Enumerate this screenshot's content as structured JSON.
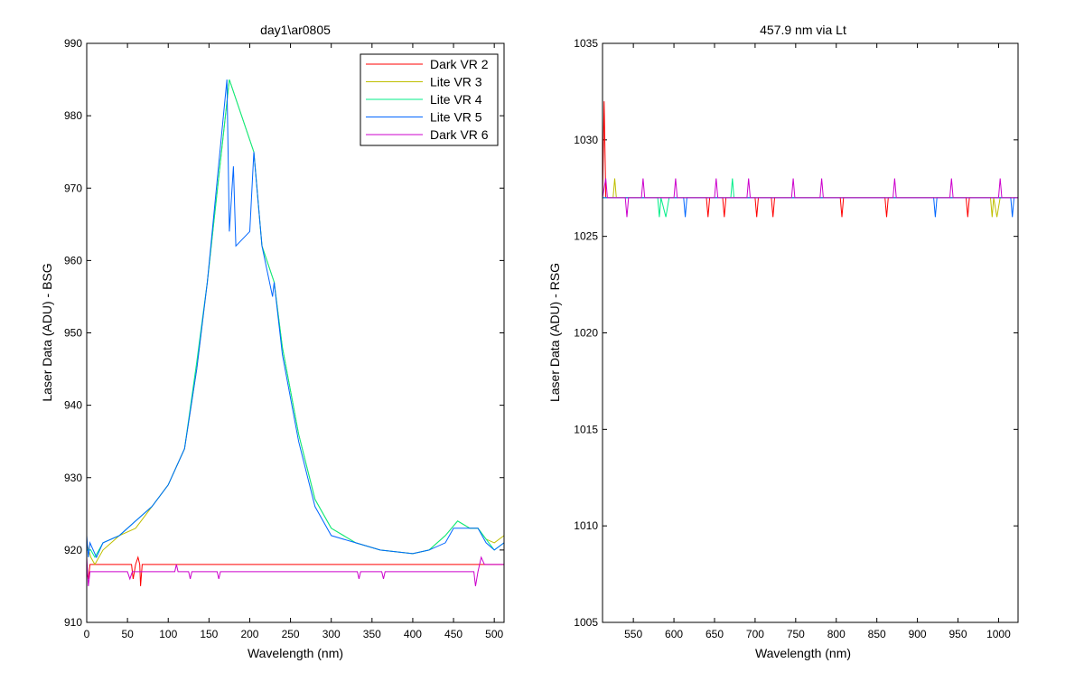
{
  "chart_data": [
    {
      "type": "line",
      "title": "day1\\ar0805",
      "xlabel": "Wavelength (nm)",
      "ylabel": "Laser Data (ADU) - BSG",
      "xlim": [
        0,
        512
      ],
      "ylim": [
        910,
        990
      ],
      "xticks": [
        0,
        50,
        100,
        150,
        200,
        250,
        300,
        350,
        400,
        450,
        500
      ],
      "yticks": [
        910,
        920,
        930,
        940,
        950,
        960,
        970,
        980,
        990
      ],
      "grid": false,
      "legend_position": "top-right",
      "series": [
        {
          "name": "Dark VR 2",
          "color": "#ff0000",
          "points": [
            [
              0,
              917
            ],
            [
              2,
              916
            ],
            [
              4,
              918
            ],
            [
              10,
              918
            ],
            [
              55,
              918
            ],
            [
              57,
              916
            ],
            [
              60,
              918
            ],
            [
              63,
              919
            ],
            [
              65,
              918
            ],
            [
              66,
              915
            ],
            [
              68,
              918
            ],
            [
              512,
              918
            ]
          ]
        },
        {
          "name": "Lite VR 3",
          "color": "#bfbf00",
          "points": [
            [
              0,
              921
            ],
            [
              5,
              919
            ],
            [
              10,
              918
            ],
            [
              20,
              920
            ],
            [
              40,
              922
            ],
            [
              60,
              923
            ],
            [
              80,
              926
            ],
            [
              100,
              929
            ],
            [
              120,
              934
            ],
            [
              135,
              945
            ],
            [
              148,
              957
            ],
            [
              175,
              985
            ],
            [
              205,
              975
            ],
            [
              215,
              962
            ],
            [
              230,
              957
            ],
            [
              240,
              948
            ],
            [
              260,
              936
            ],
            [
              280,
              927
            ],
            [
              300,
              923
            ],
            [
              330,
              921
            ],
            [
              360,
              920
            ],
            [
              400,
              919.5
            ],
            [
              420,
              920
            ],
            [
              440,
              922
            ],
            [
              455,
              924
            ],
            [
              470,
              923
            ],
            [
              480,
              923
            ],
            [
              490,
              921.5
            ],
            [
              500,
              921
            ],
            [
              512,
              922
            ]
          ]
        },
        {
          "name": "Lite VR 4",
          "color": "#00ee88",
          "points": [
            [
              0,
              920
            ],
            [
              5,
              920
            ],
            [
              10,
              919
            ],
            [
              20,
              921
            ],
            [
              40,
              922
            ],
            [
              60,
              924
            ],
            [
              80,
              926
            ],
            [
              100,
              929
            ],
            [
              120,
              934
            ],
            [
              135,
              946
            ],
            [
              148,
              957
            ],
            [
              175,
              985
            ],
            [
              205,
              975
            ],
            [
              215,
              962
            ],
            [
              230,
              957
            ],
            [
              240,
              948
            ],
            [
              260,
              936
            ],
            [
              280,
              927
            ],
            [
              300,
              923
            ],
            [
              330,
              921
            ],
            [
              360,
              920
            ],
            [
              400,
              919.5
            ],
            [
              420,
              920
            ],
            [
              440,
              922
            ],
            [
              455,
              924
            ],
            [
              470,
              923
            ],
            [
              480,
              923
            ],
            [
              490,
              921.5
            ],
            [
              500,
              920
            ],
            [
              512,
              921
            ]
          ]
        },
        {
          "name": "Lite VR 5",
          "color": "#0066ff",
          "points": [
            [
              0,
              922
            ],
            [
              2,
              919
            ],
            [
              4,
              921
            ],
            [
              8,
              920
            ],
            [
              12,
              919
            ],
            [
              20,
              921
            ],
            [
              40,
              922
            ],
            [
              60,
              924
            ],
            [
              80,
              926
            ],
            [
              100,
              929
            ],
            [
              120,
              934
            ],
            [
              135,
              945
            ],
            [
              148,
              957
            ],
            [
              172,
              985
            ],
            [
              175,
              964
            ],
            [
              180,
              973
            ],
            [
              183,
              962
            ],
            [
              200,
              964
            ],
            [
              205,
              975
            ],
            [
              215,
              962
            ],
            [
              228,
              955
            ],
            [
              230,
              957
            ],
            [
              240,
              947
            ],
            [
              260,
              935
            ],
            [
              280,
              926
            ],
            [
              300,
              922
            ],
            [
              330,
              921
            ],
            [
              360,
              920
            ],
            [
              400,
              919.5
            ],
            [
              420,
              920
            ],
            [
              440,
              921
            ],
            [
              450,
              923
            ],
            [
              470,
              923
            ],
            [
              480,
              923
            ],
            [
              490,
              921
            ],
            [
              500,
              920
            ],
            [
              512,
              921
            ]
          ]
        },
        {
          "name": "Dark VR 6",
          "color": "#cc00cc",
          "points": [
            [
              0,
              919
            ],
            [
              2,
              915
            ],
            [
              4,
              917
            ],
            [
              50,
              917
            ],
            [
              53,
              916
            ],
            [
              56,
              917
            ],
            [
              108,
              917
            ],
            [
              110,
              918
            ],
            [
              112,
              917
            ],
            [
              125,
              917
            ],
            [
              127,
              916
            ],
            [
              129,
              917
            ],
            [
              160,
              917
            ],
            [
              162,
              916
            ],
            [
              164,
              917
            ],
            [
              332,
              917
            ],
            [
              334,
              916
            ],
            [
              336,
              917
            ],
            [
              362,
              917
            ],
            [
              364,
              916
            ],
            [
              366,
              917
            ],
            [
              475,
              917
            ],
            [
              477,
              915
            ],
            [
              480,
              917
            ],
            [
              484,
              919
            ],
            [
              488,
              918
            ],
            [
              512,
              918
            ]
          ]
        }
      ]
    },
    {
      "type": "line",
      "title": "457.9 nm via Lt",
      "xlabel": "Wavelength (nm)",
      "ylabel": "Laser Data (ADU) - RSG",
      "xlim": [
        512,
        1024
      ],
      "ylim": [
        1005,
        1035
      ],
      "xticks": [
        550,
        600,
        650,
        700,
        750,
        800,
        850,
        900,
        950,
        1000
      ],
      "yticks": [
        1005,
        1010,
        1015,
        1020,
        1025,
        1030,
        1035
      ],
      "grid": false,
      "series": [
        {
          "name": "Dark VR 2",
          "color": "#ff0000",
          "points": [
            [
              512,
              1027
            ],
            [
              514,
              1032
            ],
            [
              516,
              1027
            ],
            [
              640,
              1027
            ],
            [
              642,
              1026
            ],
            [
              644,
              1027
            ],
            [
              660,
              1027
            ],
            [
              662,
              1026
            ],
            [
              664,
              1027
            ],
            [
              700,
              1027
            ],
            [
              702,
              1026
            ],
            [
              704,
              1027
            ],
            [
              720,
              1027
            ],
            [
              722,
              1026
            ],
            [
              724,
              1027
            ],
            [
              805,
              1027
            ],
            [
              807,
              1026
            ],
            [
              809,
              1027
            ],
            [
              860,
              1027
            ],
            [
              862,
              1026
            ],
            [
              864,
              1027
            ],
            [
              960,
              1027
            ],
            [
              962,
              1026
            ],
            [
              964,
              1027
            ],
            [
              1024,
              1027
            ]
          ]
        },
        {
          "name": "Lite VR 3",
          "color": "#bfbf00",
          "points": [
            [
              512,
              1027
            ],
            [
              525,
              1027
            ],
            [
              527,
              1028
            ],
            [
              529,
              1027
            ],
            [
              990,
              1027
            ],
            [
              992,
              1026
            ],
            [
              994,
              1027
            ],
            [
              998,
              1026
            ],
            [
              1002,
              1027
            ],
            [
              1024,
              1027
            ]
          ]
        },
        {
          "name": "Lite VR 4",
          "color": "#00ee88",
          "points": [
            [
              512,
              1027
            ],
            [
              580,
              1027
            ],
            [
              582,
              1026
            ],
            [
              584,
              1027
            ],
            [
              590,
              1026
            ],
            [
              594,
              1027
            ],
            [
              670,
              1027
            ],
            [
              672,
              1028
            ],
            [
              674,
              1027
            ],
            [
              1024,
              1027
            ]
          ]
        },
        {
          "name": "Lite VR 5",
          "color": "#0066ff",
          "points": [
            [
              512,
              1027
            ],
            [
              612,
              1027
            ],
            [
              614,
              1026
            ],
            [
              616,
              1027
            ],
            [
              920,
              1027
            ],
            [
              922,
              1026
            ],
            [
              924,
              1027
            ],
            [
              1015,
              1027
            ],
            [
              1017,
              1026
            ],
            [
              1019,
              1027
            ],
            [
              1024,
              1027
            ]
          ]
        },
        {
          "name": "Dark VR 6",
          "color": "#cc00cc",
          "points": [
            [
              512,
              1027
            ],
            [
              516,
              1028
            ],
            [
              518,
              1027
            ],
            [
              540,
              1027
            ],
            [
              542,
              1026
            ],
            [
              544,
              1027
            ],
            [
              560,
              1027
            ],
            [
              562,
              1028
            ],
            [
              564,
              1027
            ],
            [
              600,
              1027
            ],
            [
              602,
              1028
            ],
            [
              604,
              1027
            ],
            [
              650,
              1027
            ],
            [
              652,
              1028
            ],
            [
              654,
              1027
            ],
            [
              690,
              1027
            ],
            [
              692,
              1028
            ],
            [
              694,
              1027
            ],
            [
              745,
              1027
            ],
            [
              747,
              1028
            ],
            [
              749,
              1027
            ],
            [
              780,
              1027
            ],
            [
              782,
              1028
            ],
            [
              784,
              1027
            ],
            [
              870,
              1027
            ],
            [
              872,
              1028
            ],
            [
              874,
              1027
            ],
            [
              940,
              1027
            ],
            [
              942,
              1028
            ],
            [
              944,
              1027
            ],
            [
              1000,
              1027
            ],
            [
              1002,
              1028
            ],
            [
              1004,
              1027
            ],
            [
              1024,
              1027
            ]
          ]
        }
      ]
    }
  ]
}
